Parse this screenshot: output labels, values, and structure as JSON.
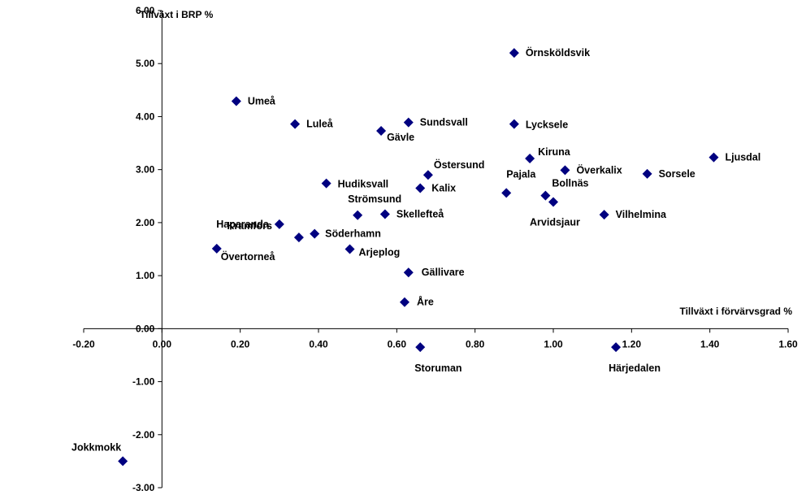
{
  "chart_data": {
    "type": "scatter",
    "ylabel": "Tillväxt i BRP %",
    "xlabel": "Tillväxt i förvärvsgrad %",
    "xlim": [
      -0.2,
      1.6
    ],
    "ylim": [
      -3.0,
      6.0
    ],
    "x_ticks": [
      "-0.20",
      "0.00",
      "0.20",
      "0.40",
      "0.60",
      "0.80",
      "1.00",
      "1.20",
      "1.40",
      "1.60"
    ],
    "y_ticks": [
      "6.00",
      "5.00",
      "4.00",
      "3.00",
      "2.00",
      "1.00",
      "0.00",
      "-1.00",
      "-2.00",
      "-3.00"
    ],
    "grid": false,
    "marker_color": "#000080",
    "points": [
      {
        "label": "Örnsköldsvik",
        "x": 0.9,
        "y": 5.2
      },
      {
        "label": "Umeå",
        "x": 0.19,
        "y": 4.29
      },
      {
        "label": "Luleå",
        "x": 0.34,
        "y": 3.86
      },
      {
        "label": "Sundsvall",
        "x": 0.63,
        "y": 3.89
      },
      {
        "label": "Gävle",
        "x": 0.56,
        "y": 3.73
      },
      {
        "label": "Lycksele",
        "x": 0.9,
        "y": 3.86
      },
      {
        "label": "Kiruna",
        "x": 0.94,
        "y": 3.21
      },
      {
        "label": "Ljusdal",
        "x": 1.41,
        "y": 3.23
      },
      {
        "label": "Överkalix",
        "x": 1.03,
        "y": 2.99
      },
      {
        "label": "Sorsele",
        "x": 1.24,
        "y": 2.92
      },
      {
        "label": "Östersund",
        "x": 0.68,
        "y": 2.9
      },
      {
        "label": "Hudiksvall",
        "x": 0.42,
        "y": 2.74
      },
      {
        "label": "Kalix",
        "x": 0.66,
        "y": 2.65
      },
      {
        "label": "Pajala",
        "x": 0.88,
        "y": 2.56
      },
      {
        "label": "Bollnäs",
        "x": 0.98,
        "y": 2.51
      },
      {
        "label": "Arvidsjaur",
        "x": 1.0,
        "y": 2.39
      },
      {
        "label": "Vilhelmina",
        "x": 1.13,
        "y": 2.15
      },
      {
        "label": "Skellefteå",
        "x": 0.57,
        "y": 2.16
      },
      {
        "label": "Strömsund",
        "x": 0.5,
        "y": 2.14
      },
      {
        "label": "Haparanda",
        "x": 0.3,
        "y": 1.97
      },
      {
        "label": "Söderhamn",
        "x": 0.39,
        "y": 1.79
      },
      {
        "label": "Kramfors",
        "x": 0.35,
        "y": 1.72
      },
      {
        "label": "Övertorneå",
        "x": 0.14,
        "y": 1.51
      },
      {
        "label": "Arjeplog",
        "x": 0.48,
        "y": 1.5
      },
      {
        "label": "Gällivare",
        "x": 0.63,
        "y": 1.06
      },
      {
        "label": "Åre",
        "x": 0.62,
        "y": 0.5
      },
      {
        "label": "Storuman",
        "x": 0.66,
        "y": -0.35
      },
      {
        "label": "Härjedalen",
        "x": 1.16,
        "y": -0.35
      },
      {
        "label": "Jokkmokk",
        "x": -0.1,
        "y": -2.5
      }
    ]
  }
}
